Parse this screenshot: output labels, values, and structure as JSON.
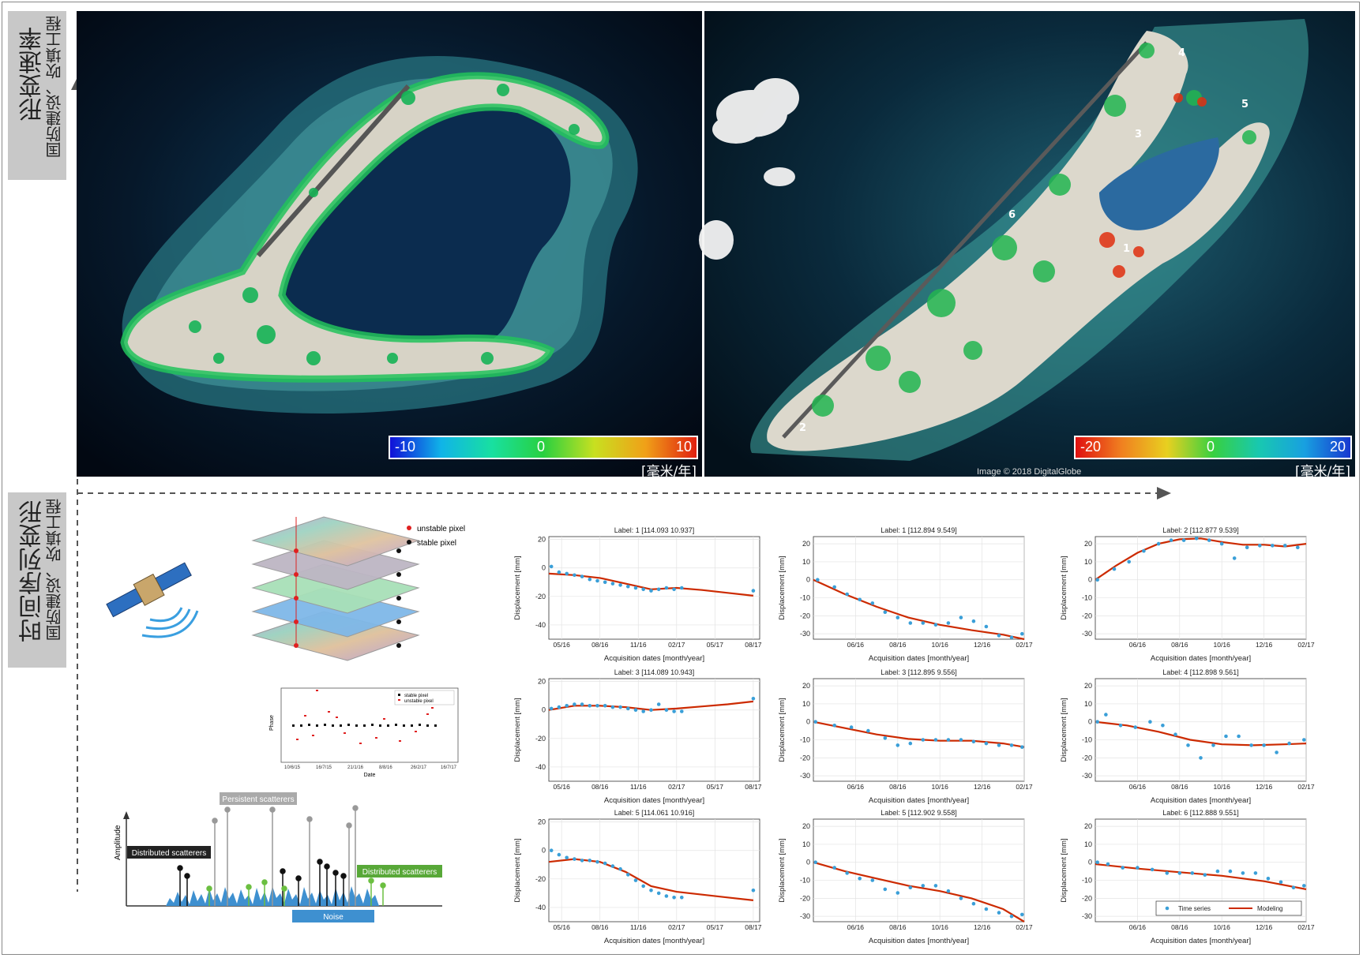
{
  "labels": {
    "top_main": "形变速率",
    "top_sub": "国防建设、吹填工程",
    "bottom_main": "时间序列变形",
    "bottom_sub": "国防建设、吹填工程"
  },
  "colorbar_left": {
    "min": "-10",
    "mid": "0",
    "max": "10",
    "unit": "[毫米/年]"
  },
  "colorbar_right": {
    "min": "-20",
    "mid": "0",
    "max": "20",
    "unit": "[毫米/年]"
  },
  "image_credit": "Image © 2018 DigitalGlobe",
  "island_markers": [
    "4",
    "5",
    "3",
    "6",
    "1",
    "2"
  ],
  "diagram": {
    "legend_unstable": "unstable pixel",
    "legend_stable": "stable pixel",
    "persistent": "Persistent scatterers",
    "distributed_left": "Distributed scatterers",
    "distributed_right": "Distributed scatterers",
    "noise": "Noise",
    "amplitude": "Amplitude",
    "phase_plot": {
      "ylabel": "Phase",
      "xlabel": "Date",
      "legend_stable": "stable pixel",
      "legend_unstable": "unstable pixel",
      "ticks": [
        "10/6/15",
        "16/7/15",
        "21/1/16",
        "8/8/16",
        "26/2/17",
        "16/7/17"
      ]
    }
  },
  "chart_common": {
    "ylabel": "Displacement [mm]",
    "xlabel": "Acquisition dates [month/year]",
    "legend_series": "Time series",
    "legend_model": "Modeling",
    "colors": {
      "points": "#3a9fd8",
      "model": "#cc2a00"
    }
  },
  "chart_data": [
    {
      "type": "scatter",
      "title": "Label: 1 [114.093 10.937]",
      "xticks": [
        "05/16",
        "08/16",
        "11/16",
        "02/17",
        "05/17",
        "08/17"
      ],
      "xlim": [
        0,
        16.5
      ],
      "xtick_pos": [
        1,
        4,
        7,
        10,
        13,
        16
      ],
      "yticks": [
        20,
        0,
        -20,
        -40
      ],
      "ylim": [
        -50,
        22
      ],
      "x": [
        0.2,
        0.8,
        1.4,
        2.0,
        2.6,
        3.2,
        3.8,
        4.4,
        5.0,
        5.6,
        6.2,
        6.8,
        7.4,
        8.0,
        8.6,
        9.2,
        9.8,
        10.4,
        16.0
      ],
      "y": [
        1,
        -3,
        -4,
        -5,
        -6,
        -8,
        -9,
        -10,
        -11,
        -12,
        -13,
        -14,
        -15,
        -16,
        -15,
        -14,
        -15,
        -14,
        -16
      ],
      "model_x": [
        0,
        2,
        4,
        6,
        8,
        10,
        12,
        14,
        16
      ],
      "model_y": [
        -4,
        -5,
        -7,
        -11,
        -15,
        -14,
        -15.5,
        -17.5,
        -19.5
      ]
    },
    {
      "type": "scatter",
      "title": "Label: 1 [112.894 9.549]",
      "xticks": [
        "06/16",
        "08/16",
        "10/16",
        "12/16",
        "02/17"
      ],
      "xlim": [
        0,
        10
      ],
      "xtick_pos": [
        2,
        4,
        6,
        8,
        10
      ],
      "yticks": [
        20,
        10,
        0,
        -10,
        -20,
        -30
      ],
      "ylim": [
        -33,
        24
      ],
      "x": [
        0.2,
        1.0,
        1.6,
        2.2,
        2.8,
        3.4,
        4.0,
        4.6,
        5.2,
        5.8,
        6.4,
        7.0,
        7.6,
        8.2,
        8.8,
        9.4,
        9.9
      ],
      "y": [
        0,
        -4,
        -8,
        -11,
        -13,
        -18,
        -21,
        -24,
        -24,
        -25,
        -24,
        -21,
        -23,
        -26,
        -31,
        -32,
        -30
      ],
      "model_x": [
        0,
        1.5,
        3,
        4.5,
        6,
        7.5,
        9,
        10
      ],
      "model_y": [
        0,
        -8,
        -15,
        -21,
        -25,
        -28,
        -30.5,
        -33
      ]
    },
    {
      "type": "scatter",
      "title": "Label: 2 [112.877 9.539]",
      "xticks": [
        "06/16",
        "08/16",
        "10/16",
        "12/16",
        "02/17"
      ],
      "xlim": [
        0,
        10
      ],
      "xtick_pos": [
        2,
        4,
        6,
        8,
        10
      ],
      "yticks": [
        20,
        10,
        0,
        -10,
        -20,
        -30
      ],
      "ylim": [
        -33,
        24
      ],
      "x": [
        0.1,
        0.9,
        1.6,
        2.3,
        3.0,
        3.6,
        4.2,
        4.8,
        5.4,
        6.0,
        6.6,
        7.2,
        7.8,
        8.4,
        9.0,
        9.6
      ],
      "y": [
        0,
        6,
        10,
        16,
        20,
        22,
        22,
        23,
        22,
        20,
        12,
        18,
        19,
        19,
        19,
        18
      ],
      "model_x": [
        0,
        1,
        2,
        3,
        4,
        5,
        6,
        7,
        8,
        9,
        10
      ],
      "model_y": [
        0,
        8,
        15,
        20,
        22.5,
        23,
        21,
        19.5,
        19.5,
        18.5,
        20
      ]
    },
    {
      "type": "scatter",
      "title": "Label: 3 [114.089 10.943]",
      "xticks": [
        "05/16",
        "08/16",
        "11/16",
        "02/17",
        "05/17",
        "08/17"
      ],
      "xlim": [
        0,
        16.5
      ],
      "xtick_pos": [
        1,
        4,
        7,
        10,
        13,
        16
      ],
      "yticks": [
        20,
        0,
        -20,
        -40
      ],
      "ylim": [
        -50,
        22
      ],
      "x": [
        0.2,
        0.8,
        1.4,
        2.0,
        2.6,
        3.2,
        3.8,
        4.4,
        5.0,
        5.6,
        6.2,
        6.8,
        7.4,
        8.0,
        8.6,
        9.2,
        9.8,
        10.4,
        16.0
      ],
      "y": [
        1,
        2,
        3,
        4,
        4,
        3,
        3,
        3,
        2,
        2,
        1,
        0,
        -1,
        0,
        4,
        0,
        -1,
        -1,
        8
      ],
      "model_x": [
        0,
        2,
        4,
        6,
        8,
        10,
        12,
        14,
        16
      ],
      "model_y": [
        0,
        3,
        3,
        2,
        0,
        1,
        2.5,
        4,
        6
      ]
    },
    {
      "type": "scatter",
      "title": "Label: 3 [112.895 9.556]",
      "xticks": [
        "06/16",
        "08/16",
        "10/16",
        "12/16",
        "02/17"
      ],
      "xlim": [
        0,
        10
      ],
      "xtick_pos": [
        2,
        4,
        6,
        8,
        10
      ],
      "yticks": [
        20,
        10,
        0,
        -10,
        -20,
        -30
      ],
      "ylim": [
        -33,
        24
      ],
      "x": [
        0.1,
        1.0,
        1.8,
        2.6,
        3.4,
        4.0,
        4.6,
        5.2,
        5.8,
        6.4,
        7.0,
        7.6,
        8.2,
        8.8,
        9.4,
        9.9
      ],
      "y": [
        0,
        -2,
        -3,
        -5,
        -9,
        -13,
        -12,
        -10,
        -10,
        -10,
        -10,
        -11,
        -12,
        -13,
        -13,
        -14
      ],
      "model_x": [
        0,
        1.5,
        3,
        4.5,
        6,
        7.5,
        9,
        10
      ],
      "model_y": [
        0,
        -3.5,
        -7,
        -9.5,
        -10.5,
        -10.5,
        -12,
        -14
      ]
    },
    {
      "type": "scatter",
      "title": "Label: 4 [112.898 9.561]",
      "xticks": [
        "06/16",
        "08/16",
        "10/16",
        "12/16",
        "02/17"
      ],
      "xlim": [
        0,
        10
      ],
      "xtick_pos": [
        2,
        4,
        6,
        8,
        10
      ],
      "yticks": [
        20,
        10,
        0,
        -10,
        -20,
        -30
      ],
      "ylim": [
        -33,
        24
      ],
      "x": [
        0.1,
        0.5,
        1.2,
        1.9,
        2.6,
        3.2,
        3.8,
        4.4,
        5.0,
        5.6,
        6.2,
        6.8,
        7.4,
        8.0,
        8.6,
        9.2,
        9.9
      ],
      "y": [
        0,
        4,
        -2,
        -3,
        0,
        -2,
        -7,
        -13,
        -20,
        -13,
        -8,
        -8,
        -13,
        -13,
        -17,
        -12,
        -10
      ],
      "model_x": [
        0,
        1.5,
        3,
        4.5,
        6,
        7.5,
        9,
        10
      ],
      "model_y": [
        0,
        -2,
        -5.5,
        -10,
        -12.5,
        -13,
        -12.5,
        -12
      ]
    },
    {
      "type": "scatter",
      "title": "Label: 5 [114.061 10.916]",
      "xticks": [
        "05/16",
        "08/16",
        "11/16",
        "02/17",
        "05/17",
        "08/17"
      ],
      "xlim": [
        0,
        16.5
      ],
      "xtick_pos": [
        1,
        4,
        7,
        10,
        13,
        16
      ],
      "yticks": [
        20,
        0,
        -20,
        -40
      ],
      "ylim": [
        -50,
        22
      ],
      "x": [
        0.2,
        0.8,
        1.4,
        2.0,
        2.6,
        3.2,
        3.8,
        4.4,
        5.0,
        5.6,
        6.2,
        6.8,
        7.4,
        8.0,
        8.6,
        9.2,
        9.8,
        10.4,
        16.0
      ],
      "y": [
        0,
        -3,
        -5,
        -6,
        -7,
        -7,
        -8,
        -9,
        -11,
        -13,
        -17,
        -21,
        -25,
        -28,
        -30,
        -32,
        -33,
        -33,
        -28
      ],
      "model_x": [
        0,
        2,
        4,
        6,
        8,
        10,
        12,
        14,
        16
      ],
      "model_y": [
        -8,
        -6,
        -8,
        -15,
        -25,
        -29,
        -31,
        -33,
        -35
      ]
    },
    {
      "type": "scatter",
      "title": "Label: 5 [112.902 9.558]",
      "xticks": [
        "06/16",
        "08/16",
        "10/16",
        "12/16",
        "02/17"
      ],
      "xlim": [
        0,
        10
      ],
      "xtick_pos": [
        2,
        4,
        6,
        8,
        10
      ],
      "yticks": [
        20,
        10,
        0,
        -10,
        -20,
        -30
      ],
      "ylim": [
        -33,
        24
      ],
      "x": [
        0.1,
        1.0,
        1.6,
        2.2,
        2.8,
        3.4,
        4.0,
        4.6,
        5.2,
        5.8,
        6.4,
        7.0,
        7.6,
        8.2,
        8.8,
        9.4,
        9.9
      ],
      "y": [
        0,
        -3,
        -6,
        -9,
        -10,
        -15,
        -17,
        -14,
        -13,
        -13,
        -16,
        -20,
        -23,
        -26,
        -28,
        -30,
        -29
      ],
      "model_x": [
        0,
        1.5,
        3,
        4.5,
        6,
        7.5,
        9,
        10
      ],
      "model_y": [
        0,
        -5,
        -9,
        -13,
        -16,
        -20,
        -26,
        -33
      ]
    },
    {
      "type": "scatter",
      "title": "Label: 6 [112.888 9.551]",
      "xticks": [
        "06/16",
        "08/16",
        "10/16",
        "12/16",
        "02/17"
      ],
      "xlim": [
        0,
        10
      ],
      "xtick_pos": [
        2,
        4,
        6,
        8,
        10
      ],
      "yticks": [
        20,
        10,
        0,
        -10,
        -20,
        -30
      ],
      "ylim": [
        -33,
        24
      ],
      "x": [
        0.1,
        0.6,
        1.3,
        2.0,
        2.7,
        3.4,
        4.0,
        4.6,
        5.2,
        5.8,
        6.4,
        7.0,
        7.6,
        8.2,
        8.8,
        9.4,
        9.9
      ],
      "y": [
        0,
        -1,
        -3,
        -3,
        -4,
        -6,
        -6,
        -6,
        -7,
        -5,
        -5,
        -6,
        -6,
        -9,
        -11,
        -14,
        -13
      ],
      "model_x": [
        0,
        2,
        4,
        6,
        8,
        10
      ],
      "model_y": [
        -1,
        -3.5,
        -5.5,
        -7.5,
        -10.5,
        -15
      ],
      "legend": true
    }
  ]
}
